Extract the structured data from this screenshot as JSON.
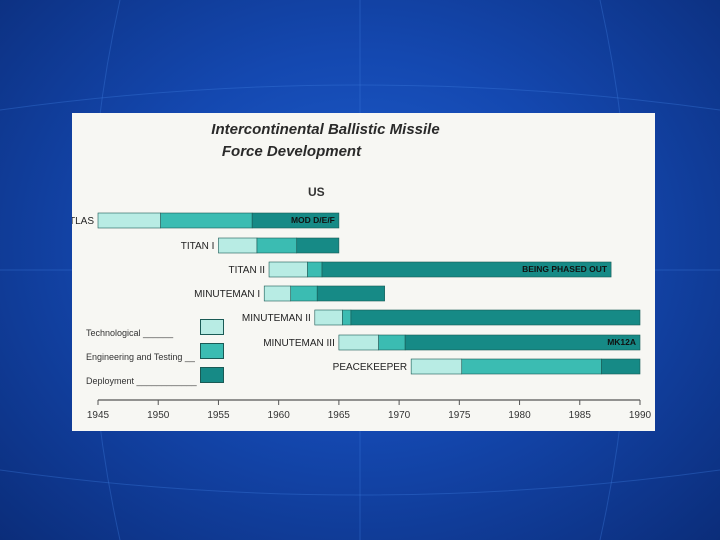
{
  "title_line1": "Intercontinental Ballistic Missile",
  "title_line2": "Force Development",
  "country": "US",
  "legend": [
    {
      "label": "Technological ______",
      "color": "#b8ece4"
    },
    {
      "label": "Engineering and Testing __",
      "color": "#3bbcb2"
    },
    {
      "label": "Deployment ____________",
      "color": "#168a86"
    }
  ],
  "chart_data": {
    "type": "gantt",
    "title": "Intercontinental Ballistic Missile Force Development",
    "subtitle": "US",
    "xlim": [
      1945,
      1990
    ],
    "x_ticks": [
      1945,
      1950,
      1955,
      1960,
      1965,
      1970,
      1975,
      1980,
      1985,
      1990
    ],
    "phases": [
      "Technological",
      "Engineering and Testing",
      "Deployment"
    ],
    "programs": [
      {
        "name": "ATLAS",
        "technological": [
          1945.0,
          1950.2
        ],
        "engineering": [
          1950.2,
          1957.8
        ],
        "deployment": [
          1957.8,
          1965.0
        ],
        "annotation": "MOD D/E/F"
      },
      {
        "name": "TITAN I",
        "technological": [
          1955.0,
          1958.2
        ],
        "engineering": [
          1958.2,
          1961.5
        ],
        "deployment": [
          1961.5,
          1965.0
        ],
        "annotation": ""
      },
      {
        "name": "TITAN II",
        "technological": [
          1959.2,
          1962.4
        ],
        "engineering": [
          1962.4,
          1963.6
        ],
        "deployment": [
          1963.6,
          1987.6
        ],
        "annotation": "BEING PHASED OUT"
      },
      {
        "name": "MINUTEMAN I",
        "technological": [
          1958.8,
          1961.0
        ],
        "engineering": [
          1961.0,
          1963.2
        ],
        "deployment": [
          1963.2,
          1968.8
        ],
        "annotation": ""
      },
      {
        "name": "MINUTEMAN II",
        "technological": [
          1963.0,
          1965.3
        ],
        "engineering": [
          1965.3,
          1966.0
        ],
        "deployment": [
          1966.0,
          1990.0
        ],
        "annotation": ""
      },
      {
        "name": "MINUTEMAN III",
        "technological": [
          1965.0,
          1968.3
        ],
        "engineering": [
          1968.3,
          1970.5
        ],
        "deployment": [
          1970.5,
          1990.0
        ],
        "annotation": "MK12A"
      },
      {
        "name": "PEACEKEEPER",
        "technological": [
          1971.0,
          1975.2
        ],
        "engineering": [
          1975.2,
          1986.8
        ],
        "deployment": [
          1986.8,
          1990.0
        ],
        "annotation": ""
      }
    ]
  }
}
